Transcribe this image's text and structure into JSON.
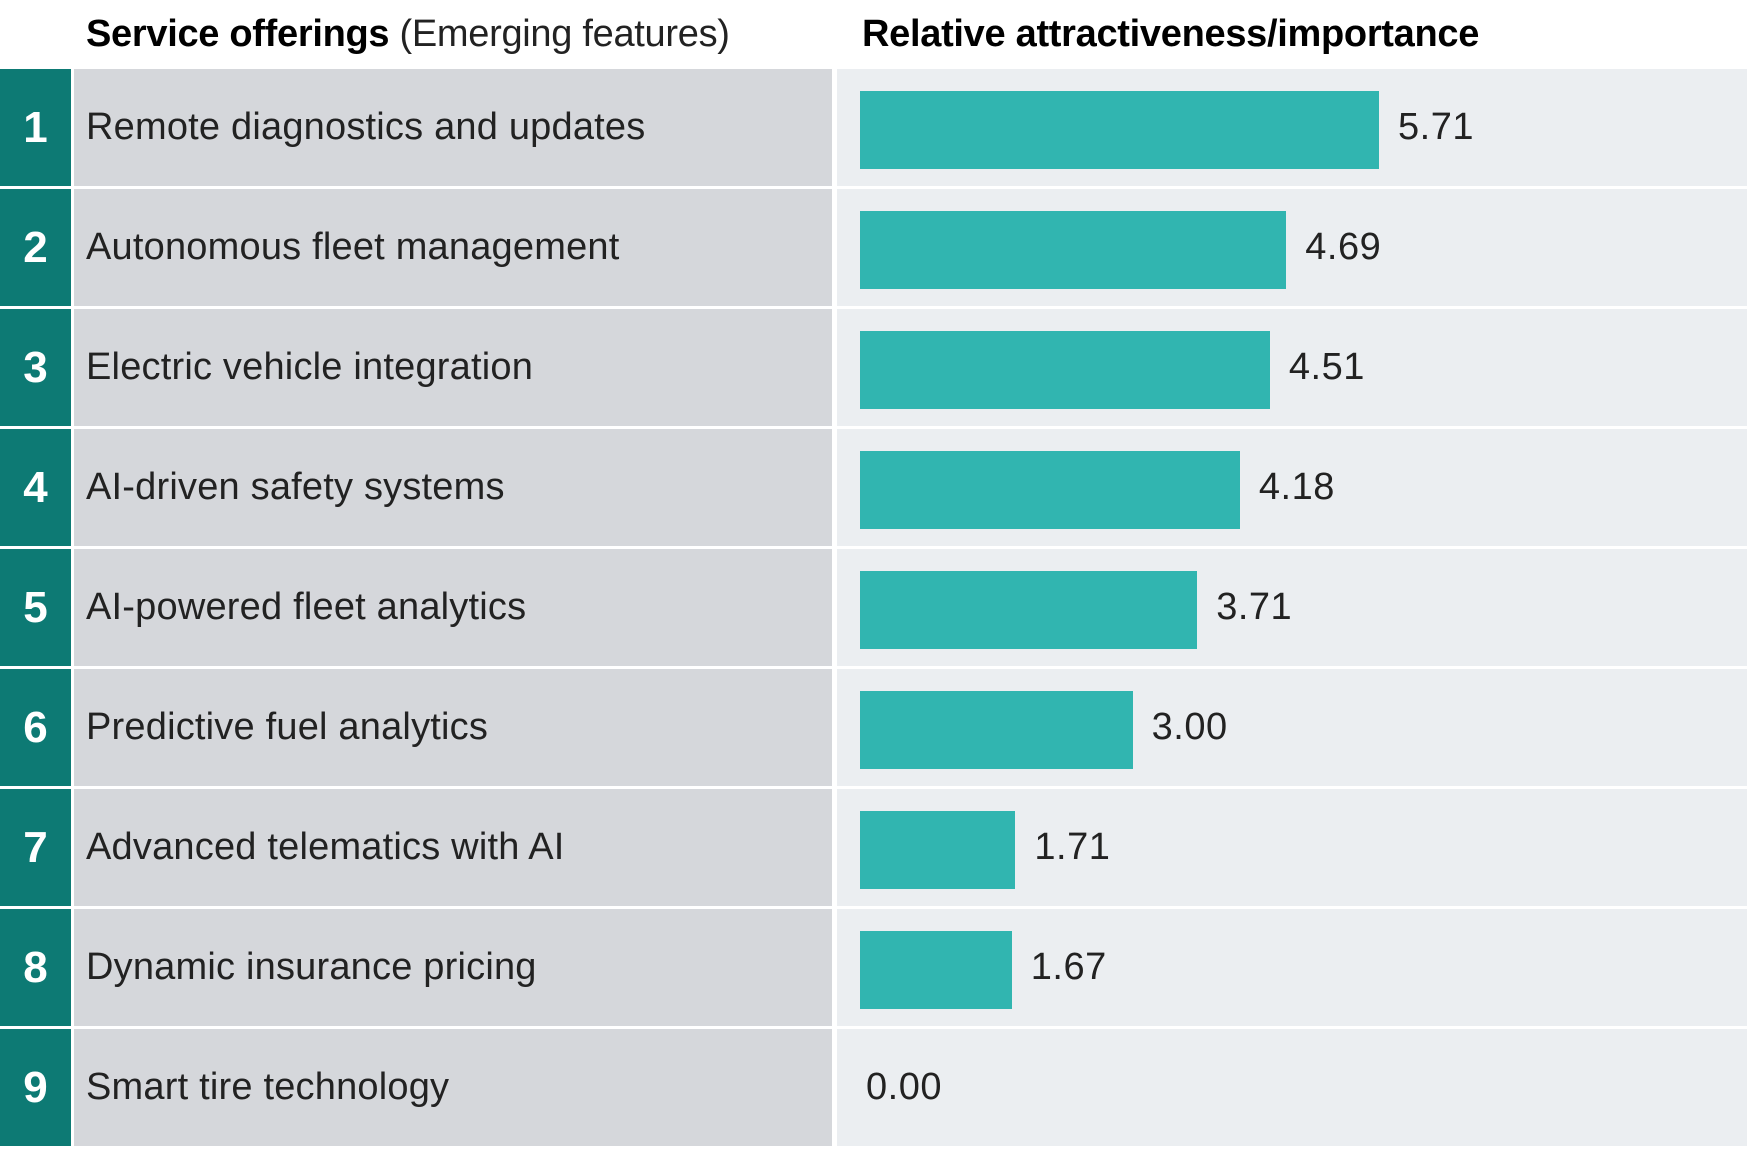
{
  "header": {
    "left_bold": "Service offerings",
    "left_light": "(Emerging features)",
    "right": "Relative attractiveness/importance"
  },
  "colors": {
    "rank_bg": "#0d7a74",
    "label_bg": "#d5d7db",
    "panel_bg": "#ebeef1",
    "bar": "#31b5b0"
  },
  "chart_data": {
    "type": "bar",
    "orientation": "horizontal",
    "title": "Relative attractiveness/importance",
    "xlabel": "",
    "ylabel": "Service offerings (Emerging features)",
    "xlim": [
      0,
      5.71
    ],
    "grid": false,
    "ranks": [
      "1",
      "2",
      "3",
      "4",
      "5",
      "6",
      "7",
      "8",
      "9"
    ],
    "categories": [
      "Remote diagnostics and updates",
      "Autonomous fleet management",
      "Electric vehicle integration",
      "AI-driven safety systems",
      "AI-powered fleet analytics",
      "Predictive fuel analytics",
      "Advanced telematics with AI",
      "Dynamic insurance pricing",
      "Smart tire technology"
    ],
    "values": [
      5.71,
      4.69,
      4.51,
      4.18,
      3.71,
      3.0,
      1.71,
      1.67,
      0.0
    ],
    "value_labels": [
      "5.71",
      "4.69",
      "4.51",
      "4.18",
      "3.71",
      "3.00",
      "1.71",
      "1.67",
      "0.00"
    ]
  }
}
